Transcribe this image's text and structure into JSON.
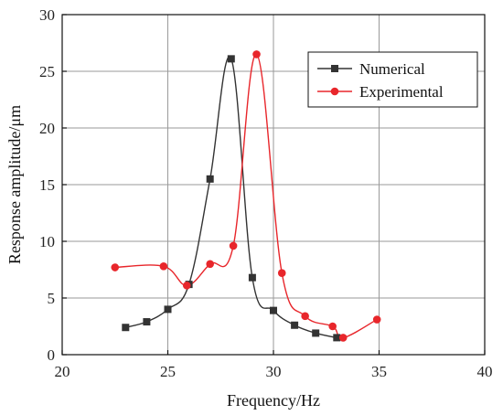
{
  "chart_data": {
    "type": "line",
    "xlabel": "Frequency/Hz",
    "ylabel": "Response amplitude/μm",
    "xlim": [
      20,
      40
    ],
    "ylim": [
      0,
      30
    ],
    "xticks": [
      "20",
      "25",
      "30",
      "35",
      "40"
    ],
    "yticks": [
      "0",
      "5",
      "10",
      "15",
      "20",
      "25",
      "30"
    ],
    "grid": true,
    "legend_position": "top-right",
    "series": [
      {
        "name": "Numerical",
        "color": "#333333",
        "marker": "square",
        "x": [
          23,
          24,
          25,
          26,
          27,
          28,
          29,
          30,
          31,
          32,
          33
        ],
        "y": [
          2.4,
          2.9,
          4.0,
          6.2,
          15.5,
          26.1,
          6.8,
          3.9,
          2.6,
          1.9,
          1.5
        ]
      },
      {
        "name": "Experimental",
        "color": "#e8262b",
        "marker": "circle",
        "x": [
          22.5,
          24.8,
          25.9,
          27.0,
          28.1,
          29.2,
          30.4,
          31.5,
          32.8,
          33.3,
          34.9
        ],
        "y": [
          7.7,
          7.8,
          6.1,
          8.0,
          9.6,
          26.5,
          7.2,
          3.4,
          2.5,
          1.5,
          3.1
        ]
      }
    ]
  }
}
